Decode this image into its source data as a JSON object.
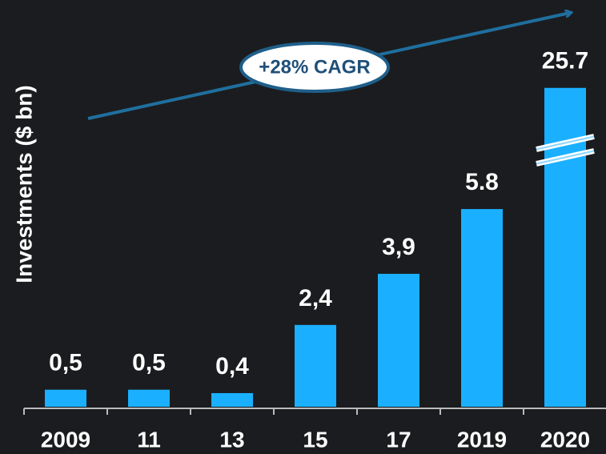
{
  "chart_data": {
    "type": "bar",
    "y_label": "Investments  ($ bn)",
    "annotation": "+28% CAGR",
    "categories": [
      "2009",
      "11",
      "13",
      "15",
      "17",
      "2019",
      "2020"
    ],
    "values": [
      0.5,
      0.5,
      0.4,
      2.4,
      3.9,
      5.8,
      25.7
    ],
    "value_labels": [
      "0,5",
      "0,5",
      "0,4",
      "2,4",
      "3,9",
      "5.8",
      "25.7"
    ],
    "color": "#1ab0ff",
    "ylim": [
      0,
      26
    ],
    "axis_break": [
      7,
      24
    ]
  }
}
